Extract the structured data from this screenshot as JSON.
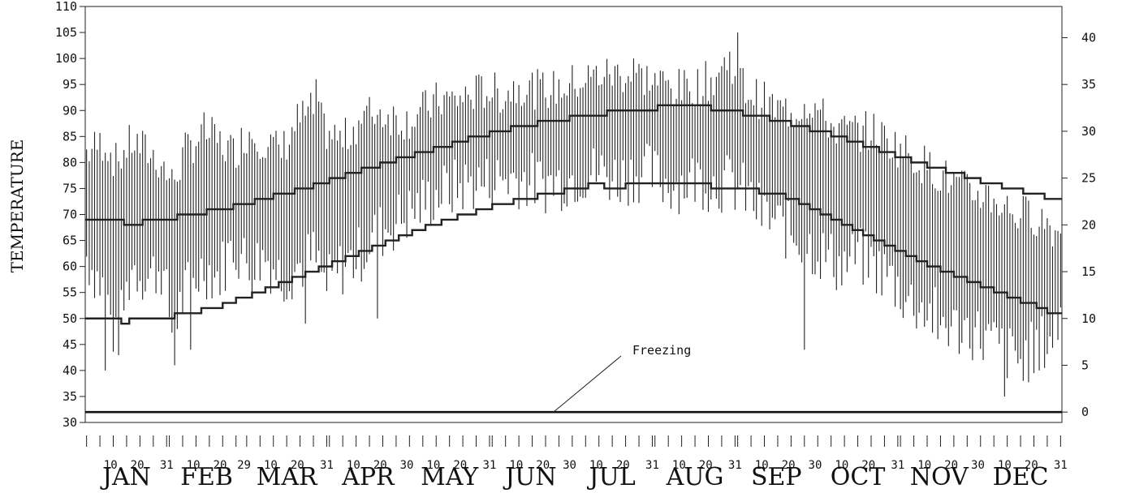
{
  "chart_data": {
    "type": "line",
    "title": "",
    "ylabel": "TEMPERATURE",
    "xlabel": "",
    "ylim": [
      30,
      110
    ],
    "y_ticks": [
      "30",
      "35",
      "40",
      "45",
      "50",
      "55",
      "60",
      "65",
      "70",
      "75",
      "80",
      "85",
      "90",
      "95",
      "100",
      "105",
      "110"
    ],
    "y2lim": [
      -1.1111,
      43.3333
    ],
    "y2_ticks": [
      "0",
      "5",
      "10",
      "15",
      "20",
      "25",
      "30",
      "35",
      "40"
    ],
    "months": [
      "JAN",
      "FEB",
      "MAR",
      "APR",
      "MAY",
      "JUN",
      "JUL",
      "AUG",
      "SEP",
      "OCT",
      "NOV",
      "DEC"
    ],
    "day_tick_labels": [
      {
        "day": 10,
        "label": "10"
      },
      {
        "day": 20,
        "label": "20"
      },
      {
        "day": 31,
        "label": "31"
      },
      {
        "day": 41,
        "label": "10"
      },
      {
        "day": 51,
        "label": "20"
      },
      {
        "day": 60,
        "label": "29"
      },
      {
        "day": 70,
        "label": "10"
      },
      {
        "day": 80,
        "label": "20"
      },
      {
        "day": 91,
        "label": "31"
      },
      {
        "day": 101,
        "label": "10"
      },
      {
        "day": 111,
        "label": "20"
      },
      {
        "day": 121,
        "label": "30"
      },
      {
        "day": 131,
        "label": "10"
      },
      {
        "day": 141,
        "label": "20"
      },
      {
        "day": 152,
        "label": "31"
      },
      {
        "day": 162,
        "label": "10"
      },
      {
        "day": 172,
        "label": "20"
      },
      {
        "day": 182,
        "label": "30"
      },
      {
        "day": 192,
        "label": "10"
      },
      {
        "day": 202,
        "label": "20"
      },
      {
        "day": 213,
        "label": "31"
      },
      {
        "day": 223,
        "label": "10"
      },
      {
        "day": 233,
        "label": "20"
      },
      {
        "day": 244,
        "label": "31"
      },
      {
        "day": 254,
        "label": "10"
      },
      {
        "day": 264,
        "label": "20"
      },
      {
        "day": 274,
        "label": "30"
      },
      {
        "day": 284,
        "label": "10"
      },
      {
        "day": 294,
        "label": "20"
      },
      {
        "day": 305,
        "label": "31"
      },
      {
        "day": 315,
        "label": "10"
      },
      {
        "day": 325,
        "label": "20"
      },
      {
        "day": 335,
        "label": "30"
      },
      {
        "day": 345,
        "label": "10"
      },
      {
        "day": 355,
        "label": "20"
      },
      {
        "day": 366,
        "label": "31"
      }
    ],
    "annotation": {
      "text": "Freezing",
      "value": 32
    },
    "freezing_line": 32,
    "series": [
      {
        "kind": "normal_high_step",
        "points": [
          [
            1,
            69
          ],
          [
            15,
            68
          ],
          [
            22,
            69
          ],
          [
            35,
            70
          ],
          [
            46,
            71
          ],
          [
            56,
            72
          ],
          [
            64,
            73
          ],
          [
            71,
            74
          ],
          [
            79,
            75
          ],
          [
            86,
            76
          ],
          [
            92,
            77
          ],
          [
            98,
            78
          ],
          [
            104,
            79
          ],
          [
            111,
            80
          ],
          [
            117,
            81
          ],
          [
            124,
            82
          ],
          [
            131,
            83
          ],
          [
            138,
            84
          ],
          [
            144,
            85
          ],
          [
            152,
            86
          ],
          [
            160,
            87
          ],
          [
            170,
            88
          ],
          [
            182,
            89
          ],
          [
            196,
            90
          ],
          [
            215,
            91
          ],
          [
            235,
            90
          ],
          [
            247,
            89
          ],
          [
            257,
            88
          ],
          [
            265,
            87
          ],
          [
            272,
            86
          ],
          [
            280,
            85
          ],
          [
            286,
            84
          ],
          [
            292,
            83
          ],
          [
            298,
            82
          ],
          [
            304,
            81
          ],
          [
            310,
            80
          ],
          [
            316,
            79
          ],
          [
            323,
            78
          ],
          [
            330,
            77
          ],
          [
            336,
            76
          ],
          [
            344,
            75
          ],
          [
            352,
            74
          ],
          [
            360,
            73
          ],
          [
            366,
            73
          ]
        ]
      },
      {
        "kind": "normal_low_step",
        "points": [
          [
            1,
            50
          ],
          [
            14,
            49
          ],
          [
            17,
            50
          ],
          [
            34,
            51
          ],
          [
            44,
            52
          ],
          [
            52,
            53
          ],
          [
            57,
            54
          ],
          [
            63,
            55
          ],
          [
            68,
            56
          ],
          [
            73,
            57
          ],
          [
            78,
            58
          ],
          [
            83,
            59
          ],
          [
            88,
            60
          ],
          [
            93,
            61
          ],
          [
            98,
            62
          ],
          [
            103,
            63
          ],
          [
            108,
            64
          ],
          [
            113,
            65
          ],
          [
            118,
            66
          ],
          [
            123,
            67
          ],
          [
            128,
            68
          ],
          [
            134,
            69
          ],
          [
            140,
            70
          ],
          [
            147,
            71
          ],
          [
            153,
            72
          ],
          [
            161,
            73
          ],
          [
            170,
            74
          ],
          [
            180,
            75
          ],
          [
            189,
            76
          ],
          [
            195,
            75
          ],
          [
            203,
            76
          ],
          [
            235,
            75
          ],
          [
            253,
            74
          ],
          [
            263,
            73
          ],
          [
            268,
            72
          ],
          [
            272,
            71
          ],
          [
            276,
            70
          ],
          [
            280,
            69
          ],
          [
            284,
            68
          ],
          [
            288,
            67
          ],
          [
            292,
            66
          ],
          [
            296,
            65
          ],
          [
            300,
            64
          ],
          [
            304,
            63
          ],
          [
            308,
            62
          ],
          [
            312,
            61
          ],
          [
            316,
            60
          ],
          [
            321,
            59
          ],
          [
            326,
            58
          ],
          [
            331,
            57
          ],
          [
            336,
            56
          ],
          [
            341,
            55
          ],
          [
            346,
            54
          ],
          [
            351,
            53
          ],
          [
            357,
            52
          ],
          [
            361,
            51
          ],
          [
            366,
            51
          ]
        ]
      },
      {
        "kind": "daily_range",
        "anchors": [
          [
            1,
            62,
            82
          ],
          [
            8,
            55,
            84
          ],
          [
            12,
            45,
            80
          ],
          [
            18,
            60,
            84
          ],
          [
            24,
            58,
            82
          ],
          [
            29,
            60,
            80
          ],
          [
            33,
            48,
            76
          ],
          [
            38,
            55,
            82
          ],
          [
            45,
            60,
            86
          ],
          [
            50,
            58,
            84
          ],
          [
            56,
            64,
            82
          ],
          [
            62,
            60,
            86
          ],
          [
            68,
            62,
            84
          ],
          [
            74,
            58,
            82
          ],
          [
            80,
            60,
            88
          ],
          [
            86,
            62,
            90
          ],
          [
            91,
            56,
            86
          ],
          [
            97,
            60,
            84
          ],
          [
            103,
            62,
            88
          ],
          [
            109,
            66,
            90
          ],
          [
            115,
            68,
            89
          ],
          [
            121,
            70,
            88
          ],
          [
            127,
            72,
            90
          ],
          [
            133,
            74,
            92
          ],
          [
            139,
            75,
            92
          ],
          [
            145,
            76,
            93
          ],
          [
            151,
            76,
            94
          ],
          [
            157,
            77,
            93
          ],
          [
            163,
            77,
            95
          ],
          [
            170,
            76,
            94
          ],
          [
            176,
            76,
            94
          ],
          [
            182,
            77,
            95
          ],
          [
            188,
            78,
            96
          ],
          [
            194,
            78,
            97
          ],
          [
            200,
            77,
            97
          ],
          [
            206,
            78,
            97
          ],
          [
            212,
            78,
            96
          ],
          [
            218,
            76,
            95
          ],
          [
            224,
            76,
            94
          ],
          [
            230,
            77,
            95
          ],
          [
            236,
            76,
            96
          ],
          [
            242,
            76,
            100
          ],
          [
            248,
            74,
            94
          ],
          [
            254,
            70,
            92
          ],
          [
            260,
            68,
            90
          ],
          [
            266,
            66,
            90
          ],
          [
            272,
            64,
            92
          ],
          [
            278,
            62,
            88
          ],
          [
            284,
            60,
            86
          ],
          [
            290,
            62,
            86
          ],
          [
            296,
            60,
            86
          ],
          [
            302,
            58,
            84
          ],
          [
            308,
            54,
            82
          ],
          [
            314,
            52,
            80
          ],
          [
            320,
            50,
            78
          ],
          [
            326,
            48,
            76
          ],
          [
            332,
            48,
            74
          ],
          [
            338,
            46,
            74
          ],
          [
            344,
            44,
            72
          ],
          [
            350,
            42,
            70
          ],
          [
            356,
            44,
            70
          ],
          [
            362,
            46,
            68
          ],
          [
            366,
            50,
            66
          ]
        ],
        "dips": [
          [
            8,
            40
          ],
          [
            34,
            41
          ],
          [
            40,
            44
          ],
          [
            83,
            49
          ],
          [
            110,
            50
          ],
          [
            270,
            44
          ],
          [
            320,
            46
          ],
          [
            345,
            35
          ],
          [
            352,
            38
          ],
          [
            358,
            40
          ]
        ],
        "peaks": [
          [
            87,
            96
          ],
          [
            206,
            100
          ],
          [
            245,
            105
          ]
        ]
      }
    ]
  }
}
